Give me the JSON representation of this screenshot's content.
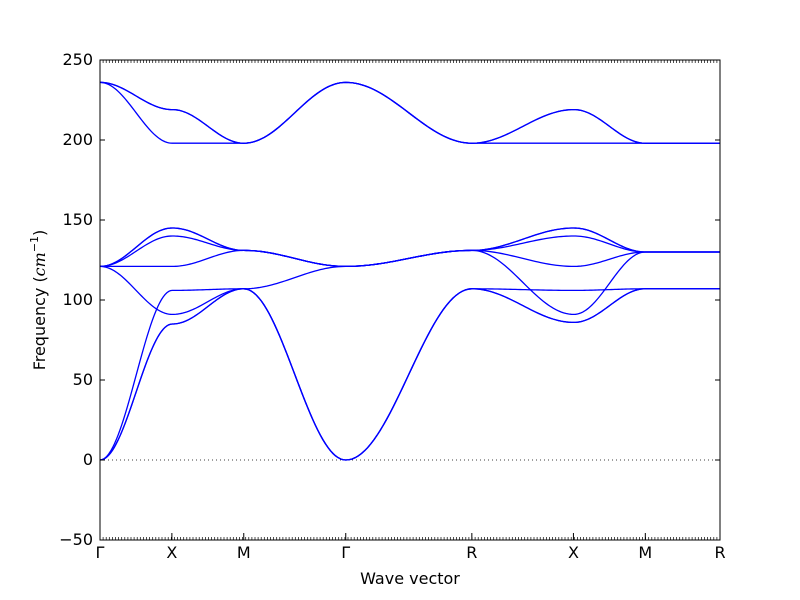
{
  "chart_data": {
    "type": "line",
    "xlabel": "Wave vector",
    "ylabel": "Frequency",
    "ylabel_unit_main": "cm",
    "ylabel_unit_exp": "−1",
    "ylim": [
      -50,
      250
    ],
    "yticks": [
      -50,
      0,
      50,
      100,
      150,
      200,
      250
    ],
    "ytick_labels": [
      "−50",
      "0",
      "50",
      "100",
      "150",
      "200",
      "250"
    ],
    "xlim": [
      0,
      7.72
    ],
    "xticks": [
      0,
      0.895,
      1.79,
      3.06,
      4.63,
      5.895,
      6.79,
      7.72
    ],
    "xtick_labels": [
      "Γ",
      "X",
      "M",
      "Γ",
      "R",
      "X",
      "M",
      "R"
    ],
    "zero_line": true,
    "line_color": "#0000ff",
    "series": [
      {
        "path": [
          [
            0,
            0
          ],
          [
            0.9,
            85
          ],
          [
            1.79,
            107
          ],
          [
            3.06,
            0
          ],
          [
            4.63,
            107
          ],
          [
            5.9,
            86
          ],
          [
            6.79,
            107
          ],
          [
            7.72,
            107
          ]
        ]
      },
      {
        "path": [
          [
            0,
            0
          ],
          [
            0.9,
            85
          ],
          [
            1.79,
            107
          ],
          [
            3.06,
            0
          ],
          [
            4.63,
            107
          ],
          [
            5.9,
            86
          ],
          [
            6.79,
            107
          ],
          [
            7.72,
            107
          ]
        ]
      },
      {
        "path": [
          [
            0,
            0
          ],
          [
            0.9,
            106
          ],
          [
            1.79,
            107
          ],
          [
            3.06,
            0
          ],
          [
            4.63,
            107
          ],
          [
            5.9,
            106
          ],
          [
            6.79,
            107
          ],
          [
            7.72,
            107
          ]
        ]
      },
      {
        "path": [
          [
            0,
            121
          ],
          [
            0.9,
            91
          ],
          [
            1.79,
            107
          ],
          [
            3.06,
            121
          ],
          [
            4.63,
            131
          ],
          [
            5.9,
            91
          ],
          [
            6.79,
            130
          ],
          [
            7.72,
            130
          ]
        ]
      },
      {
        "path": [
          [
            0,
            121
          ],
          [
            0.9,
            121
          ],
          [
            1.79,
            131
          ],
          [
            3.06,
            121
          ],
          [
            4.63,
            131
          ],
          [
            5.9,
            121
          ],
          [
            6.79,
            130
          ],
          [
            7.72,
            130
          ]
        ]
      },
      {
        "path": [
          [
            0,
            121
          ],
          [
            0.9,
            140
          ],
          [
            1.79,
            131
          ],
          [
            3.06,
            121
          ],
          [
            4.63,
            131
          ],
          [
            5.9,
            140
          ],
          [
            6.79,
            130
          ],
          [
            7.72,
            130
          ]
        ]
      },
      {
        "path": [
          [
            0,
            121
          ],
          [
            0.9,
            145
          ],
          [
            1.79,
            131
          ],
          [
            3.06,
            121
          ],
          [
            4.63,
            131
          ],
          [
            5.9,
            145
          ],
          [
            6.79,
            130
          ],
          [
            7.72,
            130
          ]
        ]
      },
      {
        "path": [
          [
            0,
            121
          ],
          [
            0.9,
            145
          ],
          [
            1.79,
            131
          ],
          [
            3.06,
            121
          ],
          [
            4.63,
            131
          ],
          [
            5.9,
            145
          ],
          [
            6.79,
            130
          ],
          [
            7.72,
            130
          ]
        ]
      },
      {
        "path": [
          [
            0,
            236
          ],
          [
            0.9,
            198
          ],
          [
            1.79,
            198
          ],
          [
            3.06,
            236
          ],
          [
            4.63,
            198
          ],
          [
            5.9,
            198
          ],
          [
            6.79,
            198
          ],
          [
            7.72,
            198
          ]
        ]
      },
      {
        "path": [
          [
            0,
            236
          ],
          [
            0.9,
            219
          ],
          [
            1.79,
            198
          ],
          [
            3.06,
            236
          ],
          [
            4.63,
            198
          ],
          [
            5.9,
            219
          ],
          [
            6.79,
            198
          ],
          [
            7.72,
            198
          ]
        ]
      },
      {
        "path": [
          [
            0,
            236
          ],
          [
            0.9,
            219
          ],
          [
            1.79,
            198
          ],
          [
            3.06,
            236
          ],
          [
            4.63,
            198
          ],
          [
            5.9,
            219
          ],
          [
            6.79,
            198
          ],
          [
            7.72,
            198
          ]
        ]
      }
    ]
  }
}
